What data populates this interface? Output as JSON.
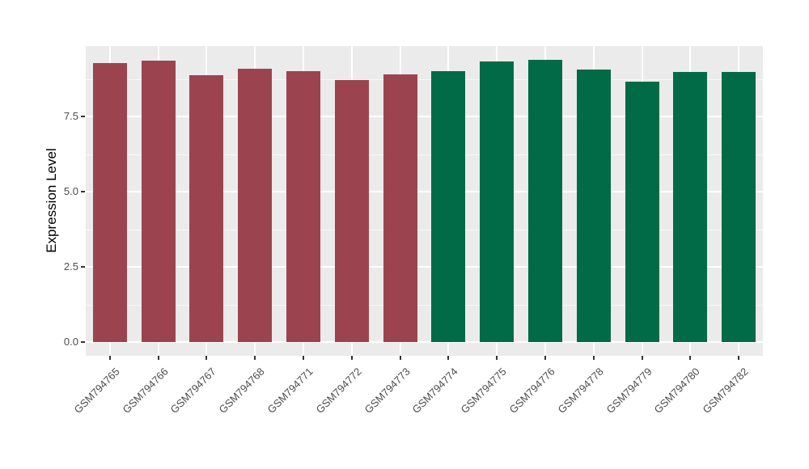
{
  "chart_data": {
    "type": "bar",
    "title": "",
    "xlabel": "",
    "ylabel": "Expression Level",
    "legend": "none",
    "categories": [
      "GSM794765",
      "GSM794766",
      "GSM794767",
      "GSM794768",
      "GSM794771",
      "GSM794772",
      "GSM794773",
      "GSM794774",
      "GSM794775",
      "GSM794776",
      "GSM794778",
      "GSM794779",
      "GSM794780",
      "GSM794782"
    ],
    "values": [
      9.28,
      9.35,
      8.86,
      9.09,
      9.0,
      8.72,
      8.9,
      9.01,
      9.32,
      9.38,
      9.06,
      8.66,
      8.97,
      8.97
    ],
    "bar_colors": [
      "#9B4450",
      "#9B4450",
      "#9B4450",
      "#9B4450",
      "#9B4450",
      "#9B4450",
      "#9B4450",
      "#006B46",
      "#006B46",
      "#006B46",
      "#006B46",
      "#006B46",
      "#006B46",
      "#006B46"
    ],
    "group_colors": {
      "left_group": "#9B4450",
      "right_group": "#006B46"
    },
    "yticks": [
      0.0,
      2.5,
      5.0,
      7.5
    ],
    "ytick_labels": [
      "0.0",
      "2.5",
      "5.0",
      "7.5"
    ],
    "minor_yticks": [
      1.25,
      3.75,
      6.25,
      8.75
    ],
    "ylim": [
      -0.5,
      9.9
    ],
    "grid": "major and minor horizontal white lines, vertical white line per category",
    "panel_background": "#EBEBEB",
    "gridline_color": "#FFFFFF",
    "tick_text_color": "#4D4D4D",
    "axis_title_color": "#000000"
  }
}
